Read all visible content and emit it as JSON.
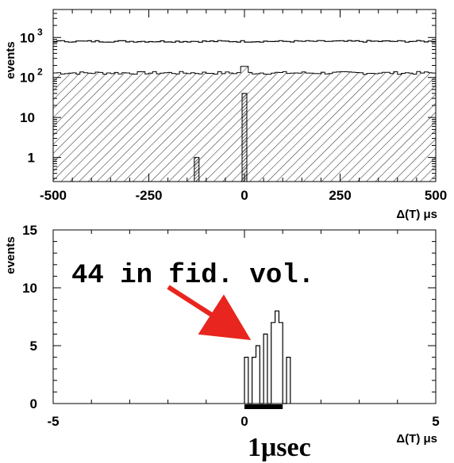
{
  "chart_data": [
    {
      "type": "histogram",
      "y_scale": "log",
      "xlabel": "Δ(T) μs",
      "ylabel": "events",
      "xlim": [
        -500,
        500
      ],
      "ylim": [
        0.25,
        5000
      ],
      "x_ticks": [
        "-500",
        "-250",
        "0",
        "250",
        "500"
      ],
      "y_ticks": [
        {
          "value": 1,
          "label": "1"
        },
        {
          "value": 10,
          "label": "10"
        },
        {
          "value": 100,
          "label": "10",
          "sup": "2"
        },
        {
          "value": 1000,
          "label": "10",
          "sup": "3"
        }
      ],
      "series": [
        {
          "style": "outline",
          "level": 800
        },
        {
          "style": "hatched",
          "level": 130
        },
        {
          "style": "spike",
          "x": 0,
          "level": 190
        },
        {
          "style": "solid",
          "bins": [
            {
              "x": -125,
              "value": 1
            },
            {
              "x": 0,
              "value": 40
            }
          ]
        }
      ]
    },
    {
      "type": "histogram",
      "xlabel": "Δ(T) μs",
      "ylabel": "events",
      "xlim": [
        -5,
        5
      ],
      "ylim": [
        0,
        15
      ],
      "x_ticks": [
        "-5",
        "0",
        "5"
      ],
      "y_ticks": [
        "0",
        "5",
        "10",
        "15"
      ],
      "bin_width": 0.1,
      "bin_edges_start": 0,
      "values": [
        4,
        0,
        4,
        5,
        0,
        6,
        0,
        7,
        8,
        7,
        0,
        4
      ],
      "annotation": "44 in fid. vol.",
      "interval_label": "1μsec",
      "interval": [
        0,
        1
      ]
    }
  ]
}
